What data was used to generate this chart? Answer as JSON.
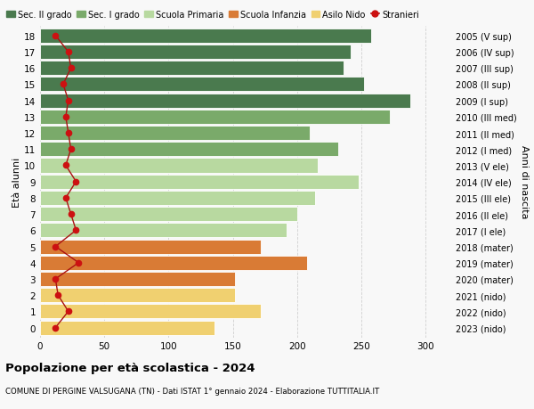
{
  "ages": [
    18,
    17,
    16,
    15,
    14,
    13,
    12,
    11,
    10,
    9,
    8,
    7,
    6,
    5,
    4,
    3,
    2,
    1,
    0
  ],
  "bar_values": [
    258,
    242,
    236,
    252,
    288,
    272,
    210,
    232,
    216,
    248,
    214,
    200,
    192,
    172,
    208,
    152,
    152,
    172,
    136
  ],
  "bar_colors": [
    "#4a7a4e",
    "#4a7a4e",
    "#4a7a4e",
    "#4a7a4e",
    "#4a7a4e",
    "#7aaa6a",
    "#7aaa6a",
    "#7aaa6a",
    "#b8d9a0",
    "#b8d9a0",
    "#b8d9a0",
    "#b8d9a0",
    "#b8d9a0",
    "#d97b35",
    "#d97b35",
    "#d97b35",
    "#f0d070",
    "#f0d070",
    "#f0d070"
  ],
  "stranieri_values": [
    12,
    22,
    24,
    18,
    22,
    20,
    22,
    24,
    20,
    28,
    20,
    24,
    28,
    12,
    30,
    12,
    14,
    22,
    12
  ],
  "right_labels": [
    "2005 (V sup)",
    "2006 (IV sup)",
    "2007 (III sup)",
    "2008 (II sup)",
    "2009 (I sup)",
    "2010 (III med)",
    "2011 (II med)",
    "2012 (I med)",
    "2013 (V ele)",
    "2014 (IV ele)",
    "2015 (III ele)",
    "2016 (II ele)",
    "2017 (I ele)",
    "2018 (mater)",
    "2019 (mater)",
    "2020 (mater)",
    "2021 (nido)",
    "2022 (nido)",
    "2023 (nido)"
  ],
  "legend_labels": [
    "Sec. II grado",
    "Sec. I grado",
    "Scuola Primaria",
    "Scuola Infanzia",
    "Asilo Nido",
    "Stranieri"
  ],
  "legend_colors": [
    "#4a7a4e",
    "#7aaa6a",
    "#b8d9a0",
    "#d97b35",
    "#f0d070",
    "#cc1111"
  ],
  "ylabel_left": "Età alunni",
  "ylabel_right": "Anni di nascita",
  "title_bold": "Popolazione per età scolastica - 2024",
  "subtitle": "COMUNE DI PERGINE VALSUGANA (TN) - Dati ISTAT 1° gennaio 2024 - Elaborazione TUTTITALIA.IT",
  "xlim": [
    0,
    320
  ],
  "xticks": [
    0,
    50,
    100,
    150,
    200,
    250,
    300
  ],
  "bg_color": "#f8f8f8",
  "stranieri_line_color": "#aa1111",
  "stranieri_marker_color": "#cc1111"
}
